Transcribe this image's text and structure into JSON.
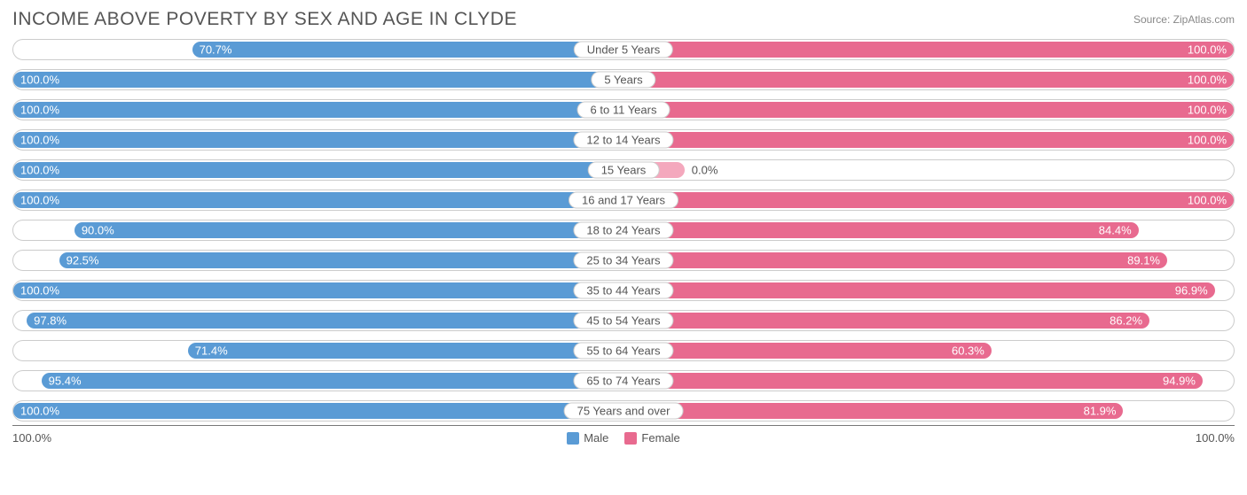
{
  "title": "INCOME ABOVE POVERTY BY SEX AND AGE IN CLYDE",
  "source": "Source: ZipAtlas.com",
  "colors": {
    "male": "#5a9bd5",
    "female": "#e86a8f",
    "female_light": "#f4a8bd",
    "border": "#cccccc",
    "text": "#555555"
  },
  "axis": {
    "left": "100.0%",
    "right": "100.0%"
  },
  "legend": {
    "male": "Male",
    "female": "Female"
  },
  "rows": [
    {
      "age": "Under 5 Years",
      "male": 70.7,
      "female": 100.0
    },
    {
      "age": "5 Years",
      "male": 100.0,
      "female": 100.0
    },
    {
      "age": "6 to 11 Years",
      "male": 100.0,
      "female": 100.0
    },
    {
      "age": "12 to 14 Years",
      "male": 100.0,
      "female": 100.0
    },
    {
      "age": "15 Years",
      "male": 100.0,
      "female": 0.0,
      "female_ghost": 10
    },
    {
      "age": "16 and 17 Years",
      "male": 100.0,
      "female": 100.0
    },
    {
      "age": "18 to 24 Years",
      "male": 90.0,
      "female": 84.4
    },
    {
      "age": "25 to 34 Years",
      "male": 92.5,
      "female": 89.1
    },
    {
      "age": "35 to 44 Years",
      "male": 100.0,
      "female": 96.9
    },
    {
      "age": "45 to 54 Years",
      "male": 97.8,
      "female": 86.2
    },
    {
      "age": "55 to 64 Years",
      "male": 71.4,
      "female": 60.3
    },
    {
      "age": "65 to 74 Years",
      "male": 95.4,
      "female": 94.9
    },
    {
      "age": "75 Years and over",
      "male": 100.0,
      "female": 81.9
    }
  ]
}
